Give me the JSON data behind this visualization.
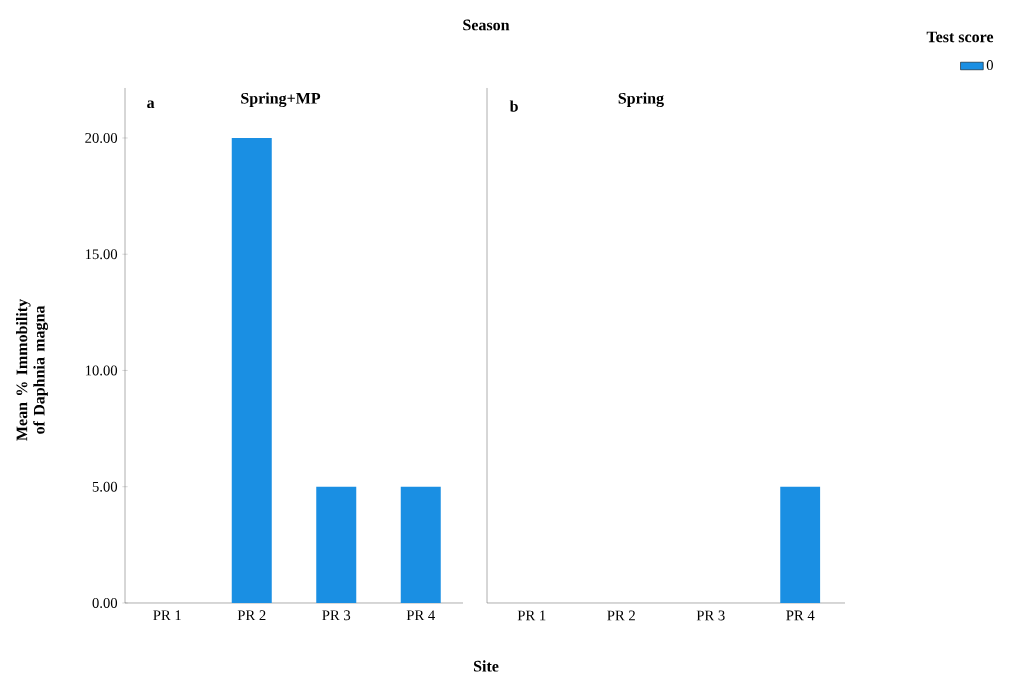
{
  "chart_data": [
    {
      "type": "bar",
      "title": "Spring+MP",
      "xlabel": "Site",
      "ylabel": "Mean % Immobility of Daphnia magna",
      "annotations": [
        "a",
        "Season"
      ],
      "categories": [
        "PR 1",
        "PR 2",
        "PR 3",
        "PR 4"
      ],
      "series": [
        {
          "color": "#1a8fe3",
          "values": [
            0,
            20,
            5,
            5
          ]
        }
      ],
      "ylim": [
        0,
        22.15
      ],
      "yticks": [
        {
          "value": 0,
          "label": "0.00"
        },
        {
          "value": 5,
          "label": "5.00"
        },
        {
          "value": 10,
          "label": "10.00"
        },
        {
          "value": 15,
          "label": "15.00"
        },
        {
          "value": 20,
          "label": "20.00"
        }
      ]
    },
    {
      "type": "bar",
      "title": "Spring",
      "annotations": [
        "b"
      ],
      "legend_title": "Test score",
      "legend": "top right",
      "tick_labels": "x",
      "categories": [
        "PR 1",
        "PR 2",
        "PR 3",
        "PR 4"
      ],
      "series": [
        {
          "name": "0",
          "color": "#1a8fe3",
          "values": [
            0,
            0,
            0,
            5
          ]
        }
      ],
      "ylim": [
        0,
        22.15
      ]
    }
  ]
}
